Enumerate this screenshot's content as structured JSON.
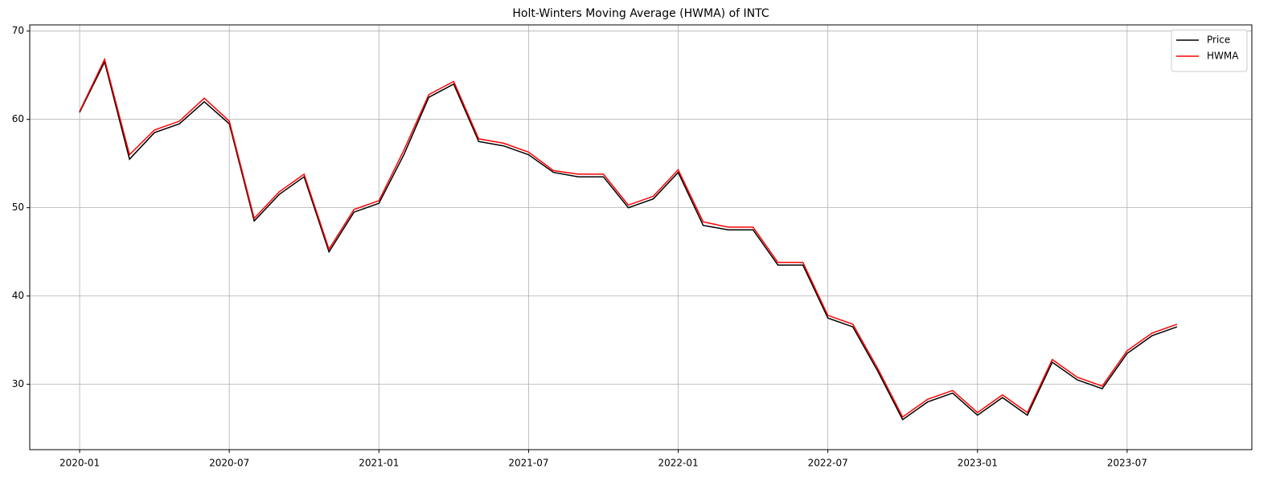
{
  "chart_data": {
    "type": "line",
    "title": "Holt-Winters Moving Average (HWMA) of INTC",
    "x": [
      "2020-01",
      "2020-02",
      "2020-03",
      "2020-04",
      "2020-05",
      "2020-06",
      "2020-07",
      "2020-08",
      "2020-09",
      "2020-10",
      "2020-11",
      "2020-12",
      "2021-01",
      "2021-02",
      "2021-03",
      "2021-04",
      "2021-05",
      "2021-06",
      "2021-07",
      "2021-08",
      "2021-09",
      "2021-10",
      "2021-11",
      "2021-12",
      "2022-01",
      "2022-02",
      "2022-03",
      "2022-04",
      "2022-05",
      "2022-06",
      "2022-07",
      "2022-08",
      "2022-09",
      "2022-10",
      "2022-11",
      "2022-12",
      "2023-01",
      "2023-02",
      "2023-03",
      "2023-04",
      "2023-05",
      "2023-06",
      "2023-07",
      "2023-08",
      "2023-09"
    ],
    "series": [
      {
        "name": "Price",
        "color": "#000000",
        "values": [
          60.8,
          66.5,
          55.5,
          58.5,
          59.5,
          62,
          59.5,
          48.5,
          51.5,
          53.5,
          45,
          49.5,
          50.5,
          56,
          62.5,
          64,
          57.5,
          57,
          56,
          54,
          53.5,
          53.5,
          50,
          51,
          54,
          48,
          47.5,
          47.5,
          43.5,
          43.5,
          37.5,
          36.5,
          31.5,
          26,
          28,
          29,
          26.5,
          28.5,
          26.5,
          32.5,
          30.5,
          29.5,
          33.5,
          35.5,
          36.5
        ]
      },
      {
        "name": "HWMA",
        "color": "#ff0000",
        "values": [
          60.9,
          66.8,
          56,
          58.8,
          59.8,
          62.4,
          59.8,
          48.8,
          51.8,
          53.8,
          45.3,
          49.8,
          50.8,
          56.5,
          62.8,
          64.3,
          57.8,
          57.3,
          56.3,
          54.2,
          53.8,
          53.8,
          50.3,
          51.3,
          54.3,
          48.4,
          47.8,
          47.8,
          43.8,
          43.8,
          37.8,
          36.8,
          31.8,
          26.3,
          28.3,
          29.3,
          26.8,
          28.8,
          26.8,
          32.8,
          30.8,
          29.8,
          33.8,
          35.8,
          36.8
        ]
      }
    ],
    "xlim": [
      "2019-11",
      "2023-12"
    ],
    "xticks": [
      "2020-01",
      "2020-07",
      "2021-01",
      "2021-07",
      "2022-01",
      "2022-07",
      "2023-01",
      "2023-07"
    ],
    "ylim": [
      22.6,
      70.7
    ],
    "yticks": [
      30,
      40,
      50,
      60,
      70
    ],
    "grid": true,
    "legend": "upper-right"
  }
}
